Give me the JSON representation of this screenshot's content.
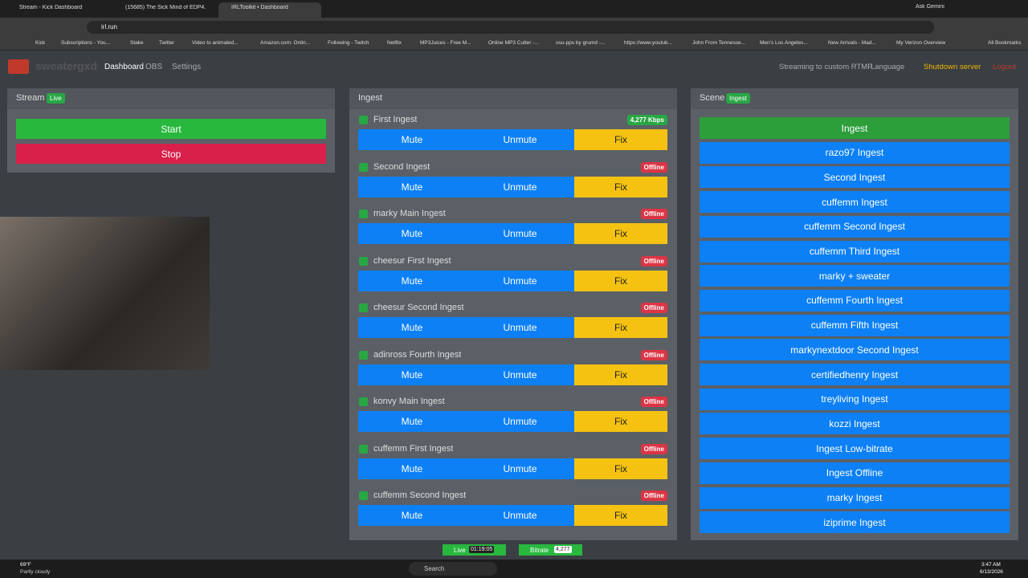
{
  "browser": {
    "tabs": [
      "Stream - Kick Dashboard",
      "(15685) The Sick Mind of EDP4...",
      "IRLToolkit • Dashboard"
    ],
    "url": "irl.run",
    "assistant": "Ask Gemini",
    "bookmarks": [
      "Kick",
      "Subscriptions - You...",
      "Stake",
      "Twitter",
      "Video to animated...",
      "Amazon.com: Onlin...",
      "Following - Twitch",
      "Netflix",
      "MP3Juices - Free M...",
      "Online MP3 Cutter -...",
      "osu-pps by grumd -...",
      "https://www.youtub...",
      "John From Tennesse...",
      "Men's Los Angeles...",
      "New Arrivals - Mad...",
      "My Verizon Overview"
    ],
    "all_bookmarks": "All Bookmarks"
  },
  "navbar": {
    "brand": "sweatergxd",
    "links": [
      "Dashboard",
      "OBS",
      "Settings"
    ],
    "status": "Streaming to custom RTMP",
    "language": "Language",
    "shutdown": "Shutdown server",
    "logout": "Logout"
  },
  "stream": {
    "title": "Stream",
    "badge": "Live",
    "buttons": [
      "Start",
      "Stop"
    ]
  },
  "ingest": {
    "title": "Ingest",
    "buttons": [
      "Mute",
      "Unmute",
      "Fix"
    ],
    "items": [
      {
        "name": "First Ingest",
        "status": "4,277 Kbps"
      },
      {
        "name": "Second Ingest",
        "status": "Offline"
      },
      {
        "name": "marky Main Ingest",
        "status": "Offline"
      },
      {
        "name": "cheesur First Ingest",
        "status": "Offline"
      },
      {
        "name": "cheesur Second Ingest",
        "status": "Offline"
      },
      {
        "name": "adinross Fourth Ingest",
        "status": "Offline"
      },
      {
        "name": "konvy Main Ingest",
        "status": "Offline"
      },
      {
        "name": "cuffemm First Ingest",
        "status": "Offline"
      },
      {
        "name": "cuffemm Second Ingest",
        "status": "Offline"
      }
    ]
  },
  "scene": {
    "title": "Scene",
    "badge": "Ingest",
    "scenes": [
      "Ingest",
      "razo97 Ingest",
      "Second Ingest",
      "cuffemm Ingest",
      "cuffemm Second Ingest",
      "cuffemm Third Ingest",
      "marky + sweater",
      "cuffemm Fourth Ingest",
      "cuffemm Fifth Ingest",
      "markynextdoor Second Ingest",
      "certifiedhenry Ingest",
      "treyliving Ingest",
      "kozzi Ingest",
      "Ingest Low-bitrate",
      "Ingest Offline",
      "marky Ingest",
      "iziprime Ingest"
    ]
  },
  "footer": {
    "live_label": "Live",
    "live_time": "01:19:05",
    "bitrate_label": "Bitrate",
    "bitrate_value": "4,277"
  },
  "taskbar": {
    "temperature": "69°F",
    "weather": "Partly cloudy",
    "search": "Search",
    "time": "3:47 AM",
    "date": "6/13/2026"
  }
}
